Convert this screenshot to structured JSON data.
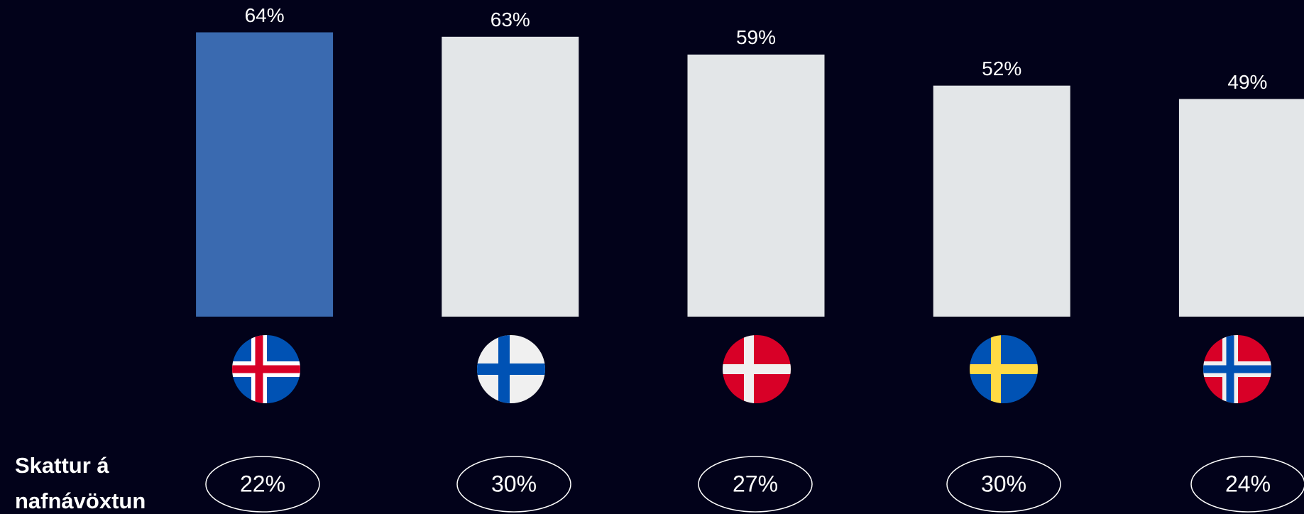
{
  "chart_data": {
    "type": "bar",
    "categories": [
      null,
      null,
      null,
      null,
      null
    ],
    "values": [
      64,
      63,
      59,
      52,
      49
    ],
    "value_labels": [
      "64%",
      "63%",
      "59%",
      "52%",
      "49%"
    ],
    "colors": [
      "#3a6ab0",
      "#e3e6e8",
      "#e3e6e8",
      "#e3e6e8",
      "#e3e6e8"
    ],
    "ylim": [
      0,
      70
    ],
    "tax_label": [
      "Skattur á",
      "nafnávöxtun"
    ],
    "tax_values": [
      22,
      30,
      27,
      30,
      24
    ],
    "tax_value_labels": [
      "22%",
      "30%",
      "27%",
      "30%",
      "24%"
    ]
  }
}
